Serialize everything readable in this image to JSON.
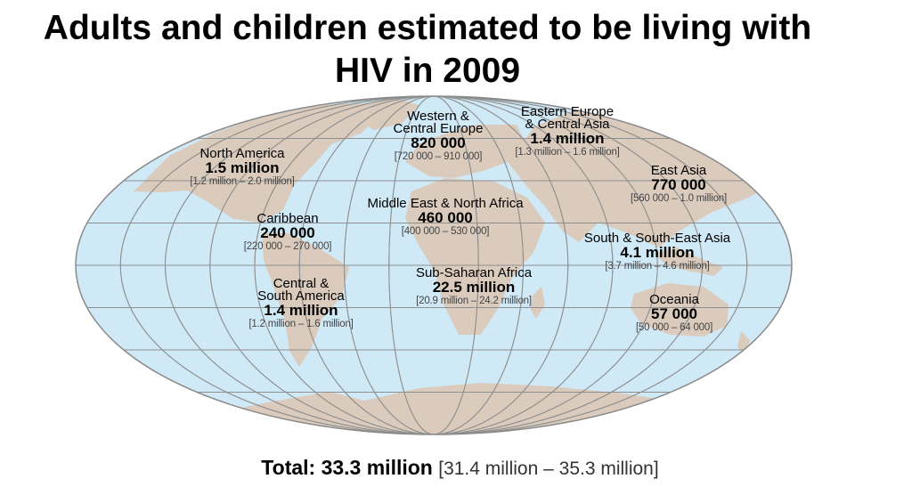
{
  "title_line1": "Adults and children estimated to be living with",
  "title_line2": "HIV in 2009",
  "colors": {
    "ocean": "#cfe9f7",
    "land": "#dacbbd",
    "grid": "#8f8f8f",
    "text": "#000000"
  },
  "regions": [
    {
      "id": "north-america",
      "name": [
        "North America"
      ],
      "value": "1.5 million",
      "range": "[1.2 million – 2.0 million]"
    },
    {
      "id": "caribbean",
      "name": [
        "Caribbean"
      ],
      "value": "240 000",
      "range": "[220 000 – 270 000]"
    },
    {
      "id": "central-south-america",
      "name": [
        "Central &",
        "South America"
      ],
      "value": "1.4 million",
      "range": "[1.2 million – 1.6 million]"
    },
    {
      "id": "western-central-europe",
      "name": [
        "Western &",
        "Central Europe"
      ],
      "value": "820 000",
      "range": "[720 000 – 910 000]"
    },
    {
      "id": "middle-east-north-africa",
      "name": [
        "Middle East & North Africa"
      ],
      "value": "460 000",
      "range": "[400 000 – 530 000]"
    },
    {
      "id": "sub-saharan-africa",
      "name": [
        "Sub-Saharan Africa"
      ],
      "value": "22.5 million",
      "range": "[20.9 million – 24.2 million]"
    },
    {
      "id": "eastern-europe-central-asia",
      "name": [
        "Eastern Europe",
        "& Central Asia"
      ],
      "value": "1.4 million",
      "range": "[1.3 million – 1.6 million]"
    },
    {
      "id": "east-asia",
      "name": [
        "East Asia"
      ],
      "value": "770 000",
      "range": "[560 000 – 1.0 million]"
    },
    {
      "id": "south-southeast-asia",
      "name": [
        "South & South-East Asia"
      ],
      "value": "4.1 million",
      "range": "[3.7 million – 4.6 million]"
    },
    {
      "id": "oceania",
      "name": [
        "Oceania"
      ],
      "value": "57 000",
      "range": "[50 000 – 64 000]"
    }
  ],
  "total": {
    "label": "Total: 33.3 million",
    "range": "[31.4 million – 35.3 million]"
  }
}
